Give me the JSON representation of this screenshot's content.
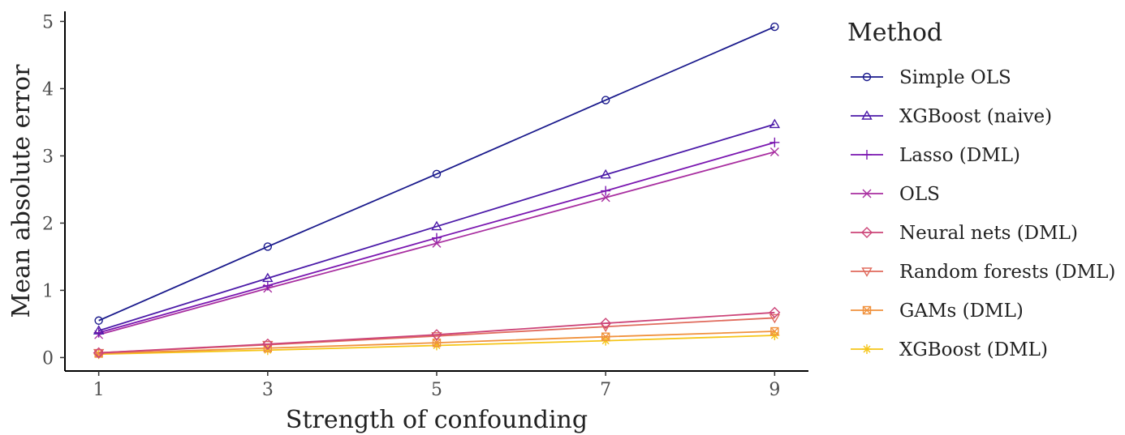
{
  "chart_data": {
    "type": "line",
    "title": "",
    "xlabel": "Strength of confounding",
    "ylabel": "Mean absolute error",
    "x": [
      1,
      3,
      5,
      7,
      9
    ],
    "xlim": [
      0.6,
      9.4
    ],
    "ylim": [
      -0.2,
      5.15
    ],
    "xticks": [
      1,
      3,
      5,
      7,
      9
    ],
    "yticks": [
      0,
      1,
      2,
      3,
      4,
      5
    ],
    "grid": false,
    "legend": {
      "title": "Method",
      "position": "right"
    },
    "series": [
      {
        "name": "Simple OLS",
        "values": [
          0.55,
          1.65,
          2.73,
          3.83,
          4.92
        ],
        "color": "#1a1a8c",
        "marker": "circle"
      },
      {
        "name": "XGBoost (naive)",
        "values": [
          0.4,
          1.18,
          1.95,
          2.72,
          3.47
        ],
        "color": "#4b1aa8",
        "marker": "triangle-up"
      },
      {
        "name": "Lasso (DML)",
        "values": [
          0.37,
          1.07,
          1.78,
          2.48,
          3.2
        ],
        "color": "#7a16b0",
        "marker": "plus"
      },
      {
        "name": "OLS",
        "values": [
          0.34,
          1.03,
          1.7,
          2.38,
          3.06
        ],
        "color": "#a82ea0",
        "marker": "cross"
      },
      {
        "name": "Neural nets (DML)",
        "values": [
          0.07,
          0.2,
          0.34,
          0.51,
          0.67
        ],
        "color": "#cc4478",
        "marker": "diamond"
      },
      {
        "name": "Random forests (DML)",
        "values": [
          0.07,
          0.19,
          0.32,
          0.46,
          0.59
        ],
        "color": "#e06a5c",
        "marker": "triangle-down"
      },
      {
        "name": "GAMs (DML)",
        "values": [
          0.06,
          0.14,
          0.22,
          0.31,
          0.39
        ],
        "color": "#f0913c",
        "marker": "square-cross"
      },
      {
        "name": "XGBoost (DML)",
        "values": [
          0.05,
          0.11,
          0.18,
          0.25,
          0.33
        ],
        "color": "#f5c518",
        "marker": "asterisk"
      }
    ]
  }
}
